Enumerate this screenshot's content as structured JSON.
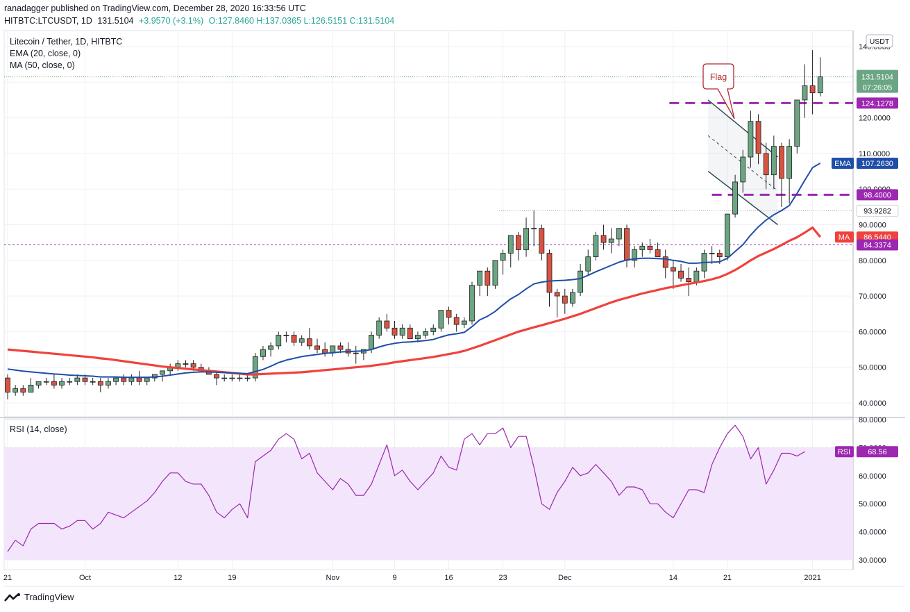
{
  "header": {
    "line1": "ranadagger published on TradingView.com, December 28, 2020 16:33:56 UTC",
    "symbol": "HITBTC:LTCUSDT, 1D",
    "last": "131.5104",
    "change": "+3.9570 (+3.1%)",
    "ohlc": "O:127.8460 H:137.0365 L:126.5151 C:131.5104"
  },
  "legend": {
    "title": "Litecoin / Tether, 1D, HITBTC",
    "ema": "EMA (20, close, 0)",
    "ma": "MA (50, close, 0)",
    "rsi": "RSI (14, close)"
  },
  "currency_button": "USDT",
  "footer": {
    "brand": "TradingView"
  },
  "colors": {
    "up": "#6ba583",
    "down": "#d75442",
    "ema": "#1e4ea8",
    "ma": "#f0423c",
    "purple": "#9c27b0",
    "rsi": "#9c27b0",
    "rsi_band": "#f3e5fb",
    "annotation": "#b22833",
    "grid": "#eef0f3"
  },
  "chart_data": [
    {
      "type": "candlestick",
      "title": "Litecoin / Tether, 1D, HITBTC",
      "x_ticks": [
        "21",
        "Oct",
        "12",
        "19",
        "Nov",
        "9",
        "16",
        "23",
        "Dec",
        "14",
        "21",
        "2021"
      ],
      "y_ticks": [
        40,
        50,
        60,
        70,
        80,
        90,
        100,
        110,
        120,
        130,
        140
      ],
      "ylim": [
        36,
        146
      ],
      "candles": [
        [
          47,
          48,
          41,
          43
        ],
        [
          43,
          45,
          42,
          44
        ],
        [
          44,
          45,
          42,
          43
        ],
        [
          43,
          47,
          43,
          45
        ],
        [
          45,
          46,
          44,
          46
        ],
        [
          46,
          47,
          45,
          46
        ],
        [
          46,
          48,
          44,
          45
        ],
        [
          45,
          47,
          44,
          46
        ],
        [
          46,
          47,
          45,
          46
        ],
        [
          46,
          48,
          45,
          47
        ],
        [
          47,
          48,
          45,
          46
        ],
        [
          46,
          47,
          45,
          46
        ],
        [
          46,
          47,
          43,
          45
        ],
        [
          45,
          47,
          44,
          46
        ],
        [
          46,
          47,
          45,
          47
        ],
        [
          47,
          48,
          45,
          46
        ],
        [
          46,
          48,
          45,
          47
        ],
        [
          47,
          49,
          45,
          46
        ],
        [
          46,
          47,
          45,
          47
        ],
        [
          47,
          48,
          46,
          48
        ],
        [
          48,
          49,
          46,
          49
        ],
        [
          49,
          51,
          48,
          50
        ],
        [
          50,
          52,
          49,
          51
        ],
        [
          51,
          52,
          50,
          51
        ],
        [
          51,
          52,
          49,
          50
        ],
        [
          50,
          51,
          49,
          49
        ],
        [
          49,
          50,
          48,
          48
        ],
        [
          48,
          49,
          45,
          47
        ],
        [
          47,
          48,
          46,
          47
        ],
        [
          47,
          48,
          46,
          47
        ],
        [
          47,
          48,
          46,
          47
        ],
        [
          47,
          48,
          46,
          47
        ],
        [
          47,
          54,
          46,
          53
        ],
        [
          53,
          56,
          52,
          55
        ],
        [
          55,
          57,
          53,
          56
        ],
        [
          56,
          60,
          55,
          59
        ],
        [
          59,
          60,
          57,
          59
        ],
        [
          59,
          60,
          56,
          57
        ],
        [
          57,
          59,
          56,
          58
        ],
        [
          58,
          61,
          55,
          56
        ],
        [
          56,
          58,
          54,
          55
        ],
        [
          55,
          57,
          53,
          54
        ],
        [
          54,
          56,
          53,
          56
        ],
        [
          56,
          57,
          54,
          55
        ],
        [
          55,
          57,
          53,
          54
        ],
        [
          54,
          56,
          51,
          54
        ],
        [
          54,
          55,
          52,
          55
        ],
        [
          55,
          60,
          54,
          59
        ],
        [
          59,
          64,
          58,
          63
        ],
        [
          63,
          65,
          60,
          61
        ],
        [
          61,
          63,
          58,
          59
        ],
        [
          59,
          62,
          58,
          61
        ],
        [
          61,
          62,
          58,
          58
        ],
        [
          58,
          60,
          57,
          59
        ],
        [
          59,
          61,
          58,
          60
        ],
        [
          60,
          62,
          59,
          61
        ],
        [
          61,
          66,
          60,
          66
        ],
        [
          66,
          67,
          62,
          64
        ],
        [
          64,
          65,
          60,
          62
        ],
        [
          62,
          64,
          61,
          63
        ],
        [
          63,
          74,
          62,
          73
        ],
        [
          73,
          77,
          70,
          77
        ],
        [
          77,
          78,
          70,
          73
        ],
        [
          73,
          80,
          72,
          80
        ],
        [
          80,
          83,
          76,
          82
        ],
        [
          82,
          87,
          78,
          87
        ],
        [
          87,
          88,
          80,
          83
        ],
        [
          83,
          92,
          81,
          89
        ],
        [
          89,
          94,
          84,
          89
        ],
        [
          89,
          90,
          80,
          82
        ],
        [
          82,
          83,
          67,
          71
        ],
        [
          71,
          72,
          64,
          70
        ],
        [
          70,
          72,
          65,
          68
        ],
        [
          68,
          72,
          67,
          71
        ],
        [
          71,
          79,
          70,
          77
        ],
        [
          77,
          83,
          76,
          81
        ],
        [
          81,
          88,
          80,
          87
        ],
        [
          87,
          90,
          83,
          85
        ],
        [
          85,
          89,
          82,
          86
        ],
        [
          86,
          89,
          84,
          89
        ],
        [
          89,
          90,
          78,
          80
        ],
        [
          80,
          84,
          78,
          83
        ],
        [
          83,
          85,
          81,
          84
        ],
        [
          84,
          86,
          82,
          83
        ],
        [
          83,
          85,
          81,
          81
        ],
        [
          81,
          83,
          75,
          78
        ],
        [
          78,
          80,
          72,
          77
        ],
        [
          77,
          79,
          74,
          75
        ],
        [
          75,
          78,
          70,
          74
        ],
        [
          74,
          78,
          73,
          77
        ],
        [
          77,
          83,
          75,
          82
        ],
        [
          82,
          84,
          79,
          82
        ],
        [
          82,
          83,
          79,
          81
        ],
        [
          81,
          93,
          80,
          93
        ],
        [
          93,
          104,
          92,
          102
        ],
        [
          102,
          111,
          99,
          109
        ],
        [
          109,
          122,
          106,
          119
        ],
        [
          119,
          121,
          107,
          110
        ],
        [
          110,
          113,
          100,
          104
        ],
        [
          104,
          115,
          100,
          112
        ],
        [
          112,
          113,
          95,
          103
        ],
        [
          103,
          114,
          96,
          112
        ],
        [
          112,
          125,
          110,
          125
        ],
        [
          125,
          135,
          120,
          129
        ],
        [
          129,
          139,
          121,
          127
        ],
        [
          127,
          137,
          126,
          131.5
        ]
      ],
      "series": [
        {
          "name": "EMA (20, close, 0)",
          "values": [
            49.5,
            49.2,
            48.9,
            48.7,
            48.5,
            48.3,
            48.1,
            48.0,
            47.8,
            47.7,
            47.6,
            47.5,
            47.3,
            47.3,
            47.3,
            47.2,
            47.2,
            47.2,
            47.2,
            47.3,
            47.5,
            47.8,
            48.1,
            48.4,
            48.6,
            48.7,
            48.7,
            48.6,
            48.5,
            48.4,
            48.3,
            48.2,
            48.8,
            49.4,
            50.3,
            51.3,
            52.0,
            52.5,
            53.0,
            53.3,
            53.6,
            53.9,
            54.1,
            54.3,
            54.4,
            54.5,
            54.6,
            55.0,
            55.7,
            56.3,
            56.7,
            57.0,
            57.1,
            57.3,
            57.5,
            57.8,
            58.5,
            59.1,
            59.4,
            59.8,
            61.4,
            63.3,
            64.3,
            65.7,
            67.5,
            69.2,
            70.4,
            72.0,
            73.4,
            73.9,
            74.2,
            74.3,
            74.4,
            74.6,
            74.9,
            75.8,
            76.8,
            77.7,
            78.6,
            79.5,
            80.1,
            80.4,
            80.6,
            80.6,
            80.5,
            80.4,
            80.0,
            79.7,
            79.2,
            79.2,
            79.4,
            79.5,
            79.6,
            80.6,
            82.5,
            84.4,
            87.1,
            89.4,
            91.3,
            92.8,
            94.0,
            95.4,
            98.8,
            102.5,
            106.0,
            107.3
          ]
        },
        {
          "name": "MA (50, close, 0)",
          "values": [
            55.0,
            54.8,
            54.6,
            54.4,
            54.2,
            54.0,
            53.8,
            53.6,
            53.4,
            53.2,
            53.0,
            52.8,
            52.5,
            52.3,
            52.0,
            51.7,
            51.4,
            51.1,
            50.8,
            50.5,
            50.2,
            50.0,
            49.8,
            49.6,
            49.4,
            49.2,
            49.0,
            48.8,
            48.6,
            48.4,
            48.2,
            48.0,
            48.0,
            48.1,
            48.2,
            48.3,
            48.4,
            48.5,
            48.6,
            48.8,
            49.0,
            49.2,
            49.4,
            49.6,
            49.8,
            50.0,
            50.2,
            50.4,
            50.7,
            51.0,
            51.4,
            51.7,
            52.0,
            52.3,
            52.6,
            52.9,
            53.3,
            53.7,
            54.1,
            54.6,
            55.3,
            56.0,
            56.8,
            57.6,
            58.4,
            59.2,
            60.0,
            60.6,
            61.2,
            61.8,
            62.4,
            63.0,
            63.6,
            64.3,
            65.0,
            65.8,
            66.6,
            67.4,
            68.2,
            68.9,
            69.5,
            70.1,
            70.7,
            71.2,
            71.7,
            72.2,
            72.6,
            73.0,
            73.4,
            73.8,
            74.2,
            74.7,
            75.3,
            76.2,
            77.3,
            78.6,
            80.0,
            81.2,
            82.2,
            83.2,
            84.3,
            85.5,
            86.5,
            87.8,
            89.2,
            86.54
          ]
        }
      ],
      "price_labels": [
        {
          "text": "131.5104",
          "sub": "07:26:05",
          "color": "#6ba583"
        },
        {
          "text": "124.1278",
          "color": "#9c27b0"
        },
        {
          "text": "107.2630",
          "tag": "EMA",
          "color": "#1e4ea8"
        },
        {
          "text": "98.4000",
          "color": "#9c27b0"
        },
        {
          "text": "93.9282",
          "color": "#ffffff"
        },
        {
          "text": "86.5440",
          "tag": "MA",
          "color": "#f0423c"
        },
        {
          "text": "84.3374",
          "color": "#9c27b0"
        }
      ],
      "annotations": [
        "Flag"
      ]
    },
    {
      "type": "line",
      "title": "RSI (14, close)",
      "y_ticks": [
        30,
        40,
        50,
        60,
        70,
        80
      ],
      "ylim": [
        27,
        81
      ],
      "band": [
        30,
        70
      ],
      "series": [
        {
          "name": "RSI",
          "values": [
            33,
            37,
            35,
            41,
            43,
            43,
            43,
            41,
            42,
            44,
            44,
            41,
            43,
            47,
            46,
            45,
            47,
            49,
            51,
            54,
            58,
            61,
            61,
            58,
            57,
            57,
            53,
            47,
            45,
            48,
            50,
            45,
            65,
            67,
            69,
            73,
            75,
            73,
            66,
            68,
            61,
            58,
            55,
            59,
            57,
            53,
            53,
            57,
            64,
            71,
            60,
            62,
            58,
            55,
            58,
            61,
            67,
            63,
            62,
            73,
            75,
            71,
            75,
            75,
            77,
            70,
            74,
            74,
            63,
            50,
            48,
            54,
            58,
            63,
            60,
            61,
            64,
            61,
            58,
            53,
            56,
            56,
            55,
            50,
            50,
            47,
            45,
            50,
            55,
            55,
            54,
            64,
            70,
            75,
            78,
            74,
            66,
            70,
            57,
            62,
            68,
            68,
            67,
            68.56
          ]
        }
      ],
      "last_label": {
        "tag": "RSI",
        "text": "68.56"
      }
    }
  ]
}
